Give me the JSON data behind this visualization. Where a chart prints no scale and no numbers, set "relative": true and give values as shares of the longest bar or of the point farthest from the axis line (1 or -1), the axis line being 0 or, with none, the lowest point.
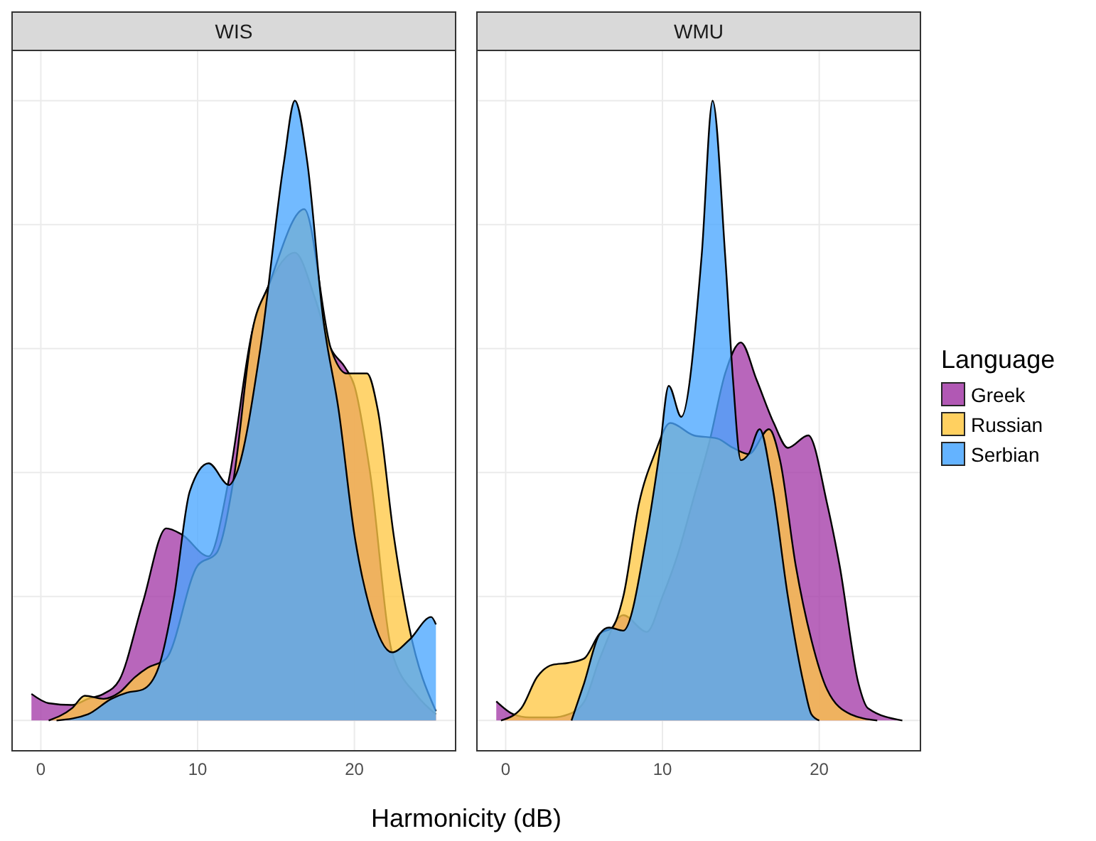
{
  "chart_data": [
    {
      "type": "area",
      "title": "WIS",
      "xlabel": "Harmonicity (dB)",
      "relative": true,
      "xlim": [
        -1.88,
        26.5
      ],
      "xticks": [
        0,
        10,
        20
      ],
      "grid": true,
      "tick_labels": "x",
      "legend": false,
      "series": [
        {
          "color": "#a43ba8",
          "x": [
            -0.6,
            0.5,
            2,
            3,
            4,
            5,
            6.5,
            8,
            9,
            10.7,
            12,
            13.5,
            14.5,
            16.2,
            17.5,
            18.5,
            19.4,
            20,
            21,
            22.4,
            24,
            25.2
          ],
          "values": [
            0.043,
            0.028,
            0.025,
            0.035,
            0.043,
            0.065,
            0.19,
            0.31,
            0.3,
            0.265,
            0.39,
            0.63,
            0.7,
            0.755,
            0.68,
            0.6,
            0.57,
            0.54,
            0.4,
            0.11,
            0.04,
            0.01
          ]
        },
        {
          "color": "#ffc845",
          "x": [
            0.5,
            2,
            2.8,
            4,
            5,
            6,
            6.8,
            8,
            10,
            11.2,
            12.3,
            13.5,
            14.5,
            16.8,
            18.5,
            19.5,
            20.8,
            21.5,
            22.5,
            23.5,
            25.2
          ],
          "values": [
            0,
            0.02,
            0.04,
            0.035,
            0.045,
            0.07,
            0.085,
            0.1,
            0.25,
            0.27,
            0.39,
            0.63,
            0.7,
            0.825,
            0.6,
            0.56,
            0.56,
            0.5,
            0.3,
            0.15,
            0.015
          ]
        },
        {
          "color": "#4aa6ff",
          "x": [
            1,
            3,
            4.5,
            5.5,
            6.5,
            7.5,
            8.5,
            9.5,
            10.7,
            12,
            12.5,
            14,
            15.5,
            16.2,
            17,
            18,
            19,
            20,
            21,
            22.4,
            23.5,
            24.9,
            25.2
          ],
          "values": [
            0,
            0.01,
            0.035,
            0.045,
            0.05,
            0.085,
            0.2,
            0.37,
            0.415,
            0.38,
            0.4,
            0.6,
            0.9,
            1,
            0.9,
            0.65,
            0.5,
            0.3,
            0.18,
            0.11,
            0.13,
            0.167,
            0.155
          ]
        }
      ]
    },
    {
      "type": "area",
      "title": "WMU",
      "legend_title": "Language",
      "relative": true,
      "xlim": [
        -1.88,
        26.5
      ],
      "xticks": [
        0,
        10,
        20
      ],
      "grid": true,
      "tick_labels": "x",
      "legend": "right",
      "series": [
        {
          "name": "Greek",
          "color": "#a43ba8",
          "x": [
            -0.6,
            0.5,
            1.5,
            3,
            4,
            5,
            6,
            7.5,
            9,
            10,
            11,
            12,
            13,
            14,
            15,
            16,
            17.1,
            18,
            19.3,
            20.5,
            21.3,
            22.5,
            23.1,
            25.3
          ],
          "values": [
            0.031,
            0.01,
            0.005,
            0.005,
            0.01,
            0.03,
            0.1,
            0.17,
            0.143,
            0.2,
            0.27,
            0.36,
            0.45,
            0.56,
            0.61,
            0.55,
            0.48,
            0.44,
            0.46,
            0.35,
            0.25,
            0.06,
            0.02,
            0
          ]
        },
        {
          "name": "Russian",
          "color": "#ffc845",
          "x": [
            -0.3,
            1,
            2,
            3,
            4,
            5,
            6,
            6.8,
            7.5,
            8.5,
            9.5,
            10.5,
            12,
            13.5,
            14.5,
            15.5,
            16.8,
            17.5,
            18.5,
            19.5,
            20.5,
            22,
            23.7
          ],
          "values": [
            0,
            0.02,
            0.07,
            0.09,
            0.093,
            0.1,
            0.14,
            0.15,
            0.2,
            0.35,
            0.43,
            0.48,
            0.46,
            0.455,
            0.44,
            0.43,
            0.47,
            0.42,
            0.25,
            0.13,
            0.05,
            0.01,
            0
          ]
        },
        {
          "name": "Serbian",
          "color": "#4aa6ff",
          "x": [
            4.2,
            5,
            6,
            6.6,
            7.5,
            9,
            9.8,
            10.4,
            11.2,
            12.5,
            13.2,
            14,
            14.5,
            15,
            15.5,
            16.2,
            17,
            18,
            19,
            19.5,
            20
          ],
          "values": [
            0,
            0.06,
            0.14,
            0.15,
            0.145,
            0.3,
            0.43,
            0.54,
            0.49,
            0.75,
            1,
            0.75,
            0.55,
            0.42,
            0.43,
            0.47,
            0.38,
            0.2,
            0.06,
            0.01,
            0
          ]
        }
      ]
    }
  ]
}
